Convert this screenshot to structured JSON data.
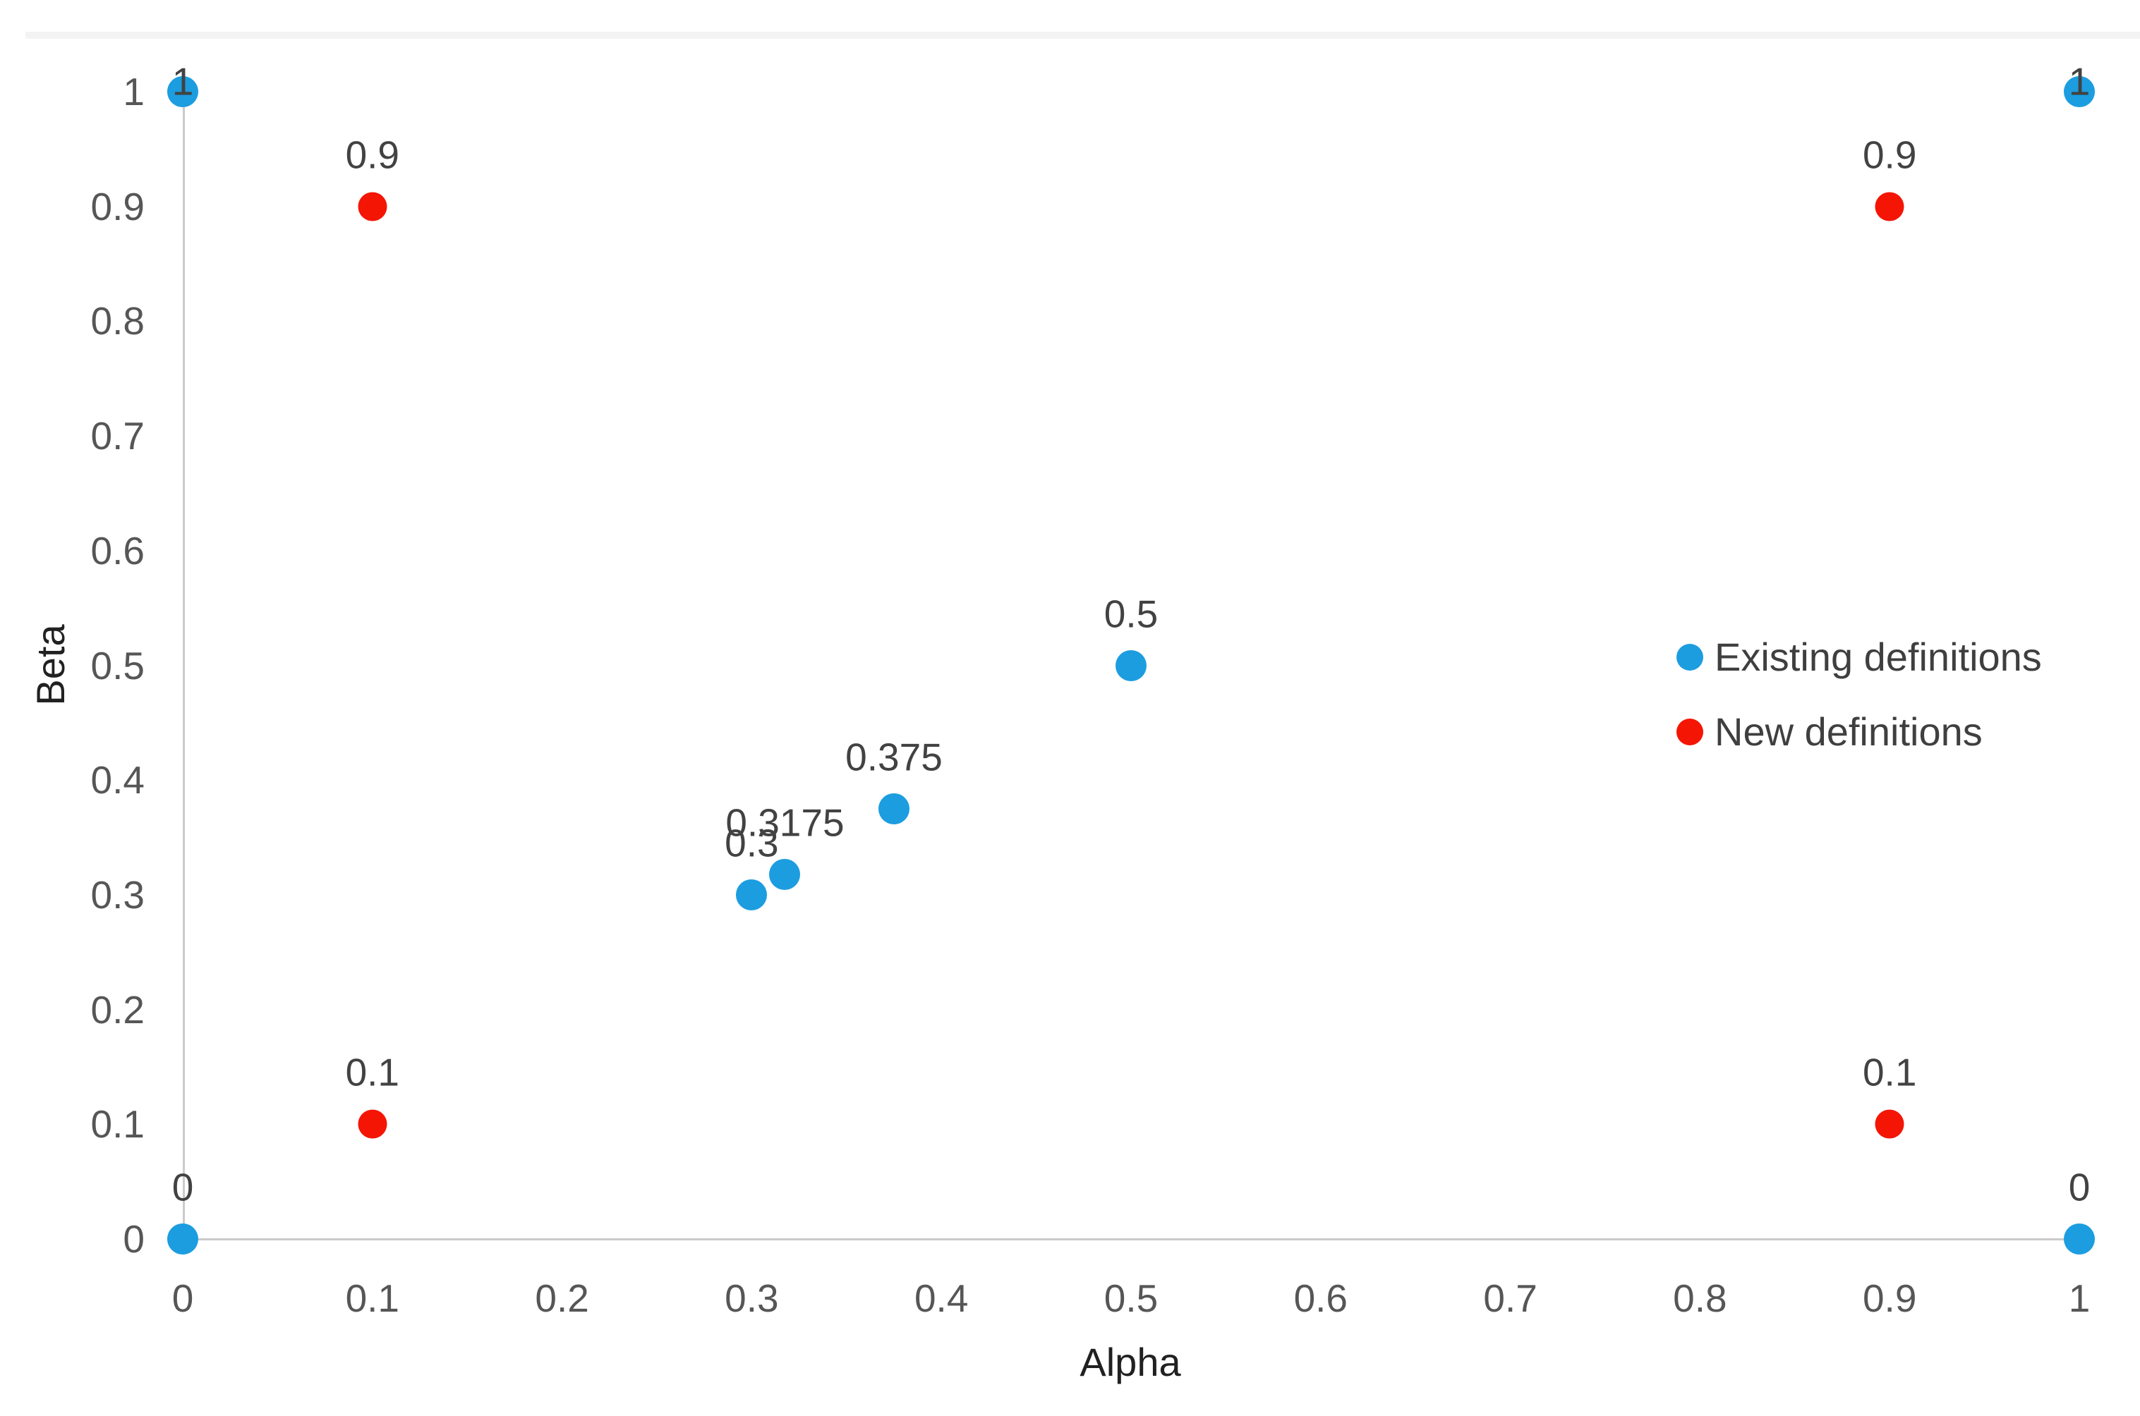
{
  "figure": {
    "background_color": "#ffffff",
    "top_band_color": "#f3f3f3",
    "axis_line_color": "#cbcbcb"
  },
  "chart_data": {
    "type": "scatter",
    "title": "",
    "xlabel": "Alpha",
    "ylabel": "Beta",
    "xlim": [
      0,
      1
    ],
    "ylim": [
      0,
      1
    ],
    "grid": false,
    "legend_position": "middle-right",
    "x_ticks": [
      {
        "v": 0,
        "label": "0"
      },
      {
        "v": 0.1,
        "label": "0.1"
      },
      {
        "v": 0.2,
        "label": "0.2"
      },
      {
        "v": 0.3,
        "label": "0.3"
      },
      {
        "v": 0.4,
        "label": "0.4"
      },
      {
        "v": 0.5,
        "label": "0.5"
      },
      {
        "v": 0.6,
        "label": "0.6"
      },
      {
        "v": 0.7,
        "label": "0.7"
      },
      {
        "v": 0.8,
        "label": "0.8"
      },
      {
        "v": 0.9,
        "label": "0.9"
      },
      {
        "v": 1,
        "label": "1"
      }
    ],
    "y_ticks": [
      {
        "v": 0,
        "label": "0"
      },
      {
        "v": 0.1,
        "label": "0.1"
      },
      {
        "v": 0.2,
        "label": "0.2"
      },
      {
        "v": 0.3,
        "label": "0.3"
      },
      {
        "v": 0.4,
        "label": "0.4"
      },
      {
        "v": 0.5,
        "label": "0.5"
      },
      {
        "v": 0.6,
        "label": "0.6"
      },
      {
        "v": 0.7,
        "label": "0.7"
      },
      {
        "v": 0.8,
        "label": "0.8"
      },
      {
        "v": 0.9,
        "label": "0.9"
      },
      {
        "v": 1,
        "label": "1"
      }
    ],
    "series": [
      {
        "name": "Existing definitions",
        "color": "#1c9de0",
        "marker": "circle",
        "marker_px": 44,
        "points": [
          {
            "x": 0,
            "y": 1,
            "label": "1",
            "label_placement": "over"
          },
          {
            "x": 1,
            "y": 1,
            "label": "1",
            "label_placement": "over"
          },
          {
            "x": 0.5,
            "y": 0.5,
            "label": "0.5",
            "label_placement": "above"
          },
          {
            "x": 0.375,
            "y": 0.375,
            "label": "0.375",
            "label_placement": "above"
          },
          {
            "x": 0.3175,
            "y": 0.3175,
            "label": "0.3175",
            "label_placement": "above"
          },
          {
            "x": 0.3,
            "y": 0.3,
            "label": "0.3",
            "label_placement": "above"
          },
          {
            "x": 0,
            "y": 0,
            "label": "0",
            "label_placement": "above"
          },
          {
            "x": 1,
            "y": 0,
            "label": "0",
            "label_placement": "above"
          }
        ]
      },
      {
        "name": "New definitions",
        "color": "#f41505",
        "marker": "circle",
        "marker_px": 41,
        "points": [
          {
            "x": 0.1,
            "y": 0.9,
            "label": "0.9",
            "label_placement": "above"
          },
          {
            "x": 0.9,
            "y": 0.9,
            "label": "0.9",
            "label_placement": "above"
          },
          {
            "x": 0.1,
            "y": 0.1,
            "label": "0.1",
            "label_placement": "above"
          },
          {
            "x": 0.9,
            "y": 0.1,
            "label": "0.1",
            "label_placement": "above"
          }
        ]
      }
    ]
  }
}
